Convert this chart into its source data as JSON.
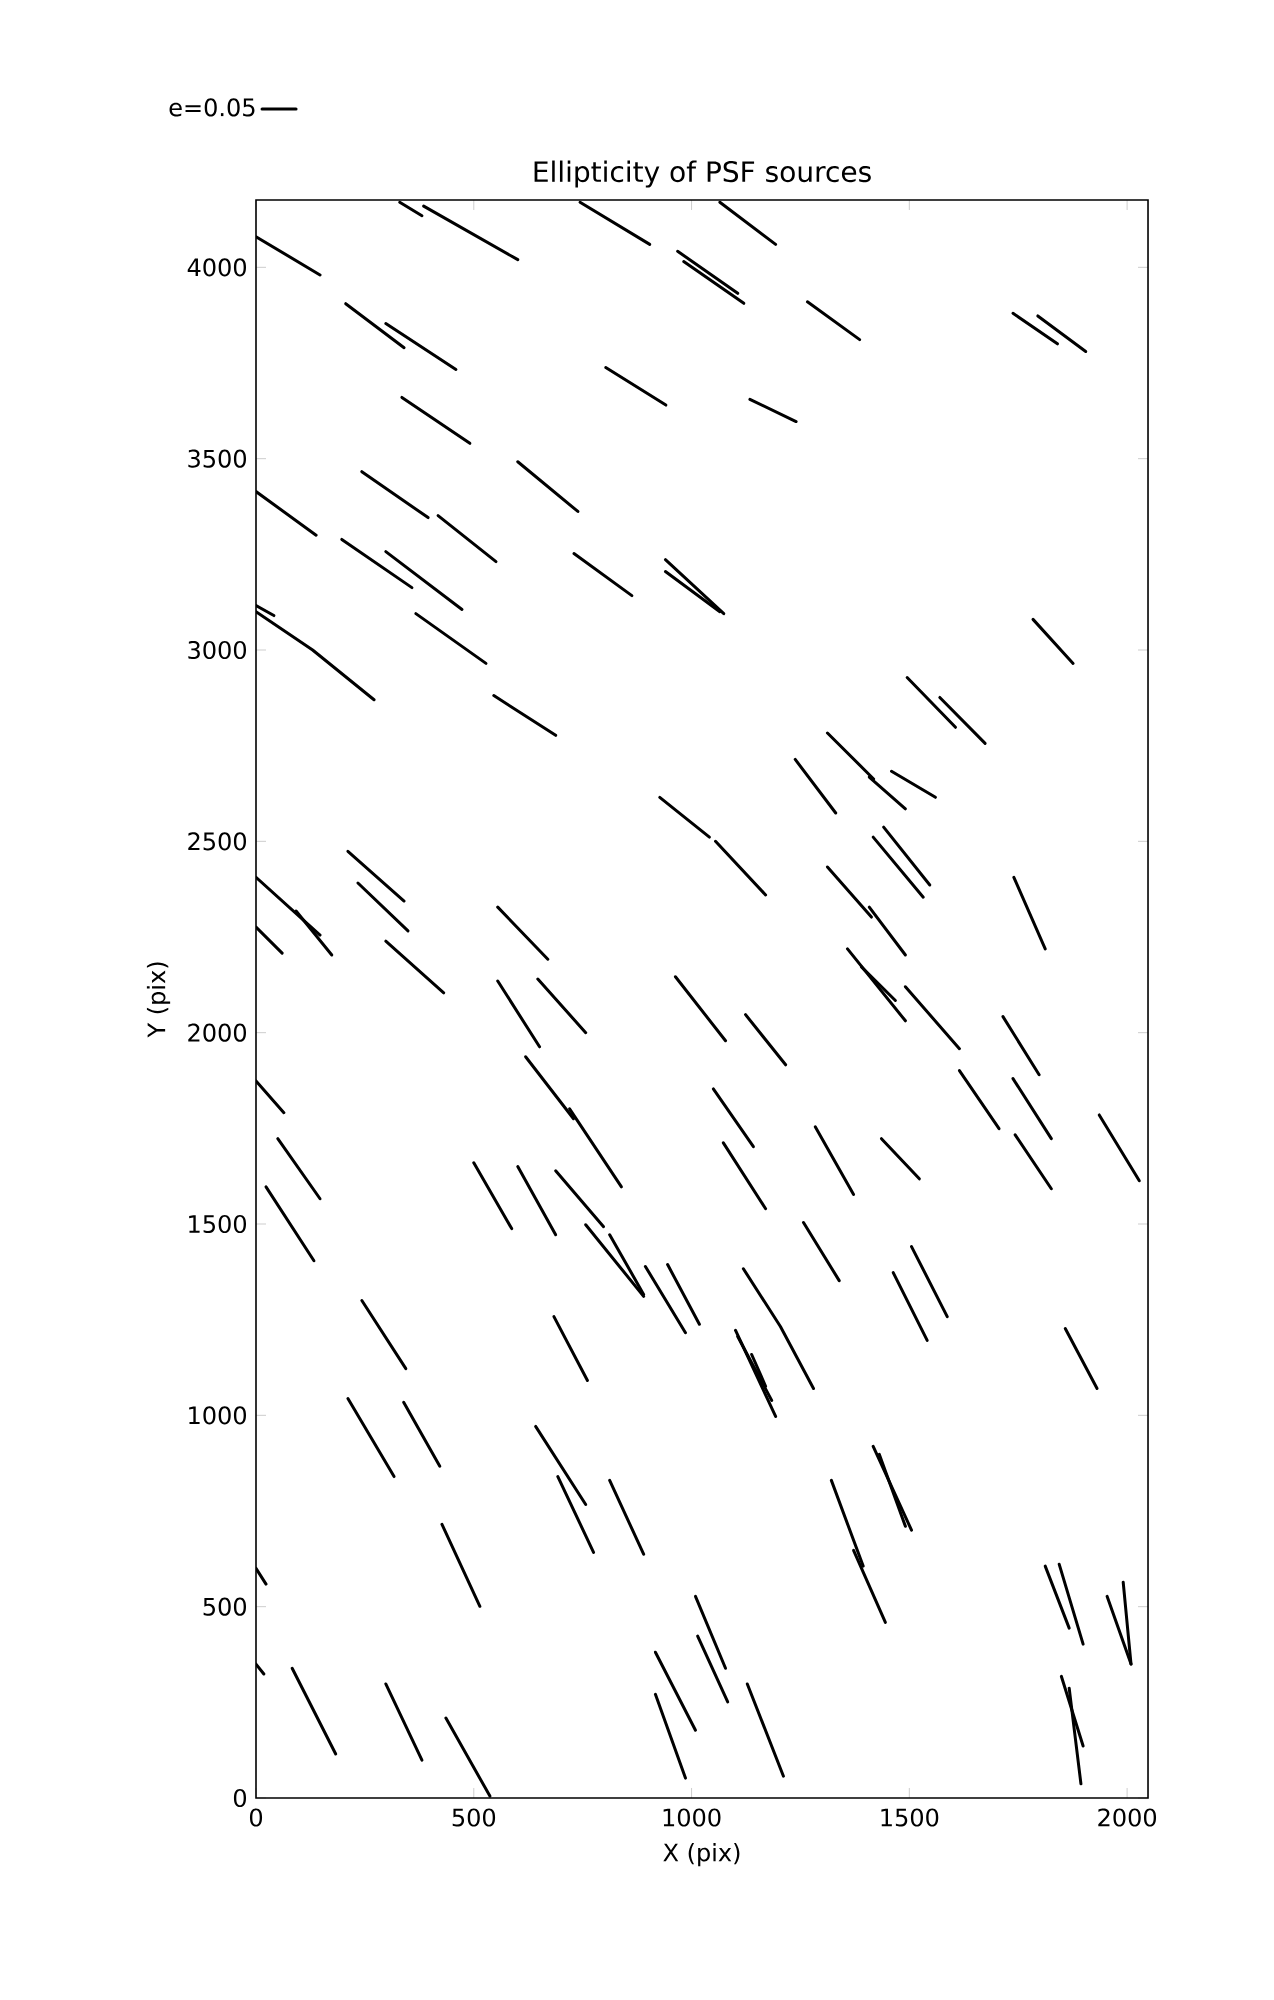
{
  "chart_data": {
    "type": "line",
    "title": "Ellipticity of PSF sources",
    "xlabel": "X (pix)",
    "ylabel": "Y (pix)",
    "xlim": [
      0,
      2048
    ],
    "ylim": [
      0,
      4176
    ],
    "xticks": [
      0,
      500,
      1000,
      1500,
      2000
    ],
    "yticks": [
      0,
      500,
      1000,
      1500,
      2000,
      2500,
      3000,
      3500,
      4000
    ],
    "marker": "none",
    "line_style": "solid",
    "legend": "top left",
    "series": [
      {
        "name": "e=0.05",
        "color": "#000000",
        "x": [
          0,
          147
        ],
        "values": [
          4080,
          3980
        ]
      },
      {
        "color": "#000000",
        "x": [
          330,
          381
        ],
        "values": [
          4170,
          4135
        ]
      },
      {
        "color": "#000000",
        "x": [
          385,
          601
        ],
        "values": [
          4160,
          4020
        ]
      },
      {
        "color": "#000000",
        "x": [
          744,
          904
        ],
        "values": [
          4170,
          4060
        ]
      },
      {
        "color": "#000000",
        "x": [
          968,
          1106
        ],
        "values": [
          4042,
          3932
        ]
      },
      {
        "color": "#000000",
        "x": [
          982,
          1120
        ],
        "values": [
          4015,
          3906
        ]
      },
      {
        "color": "#000000",
        "x": [
          1065,
          1193
        ],
        "values": [
          4170,
          4060
        ]
      },
      {
        "color": "#000000",
        "x": [
          1266,
          1386
        ],
        "values": [
          3910,
          3811
        ]
      },
      {
        "color": "#000000",
        "x": [
          1738,
          1840
        ],
        "values": [
          3880,
          3800
        ]
      },
      {
        "color": "#000000",
        "x": [
          1795,
          1905
        ],
        "values": [
          3873,
          3780
        ]
      },
      {
        "color": "#000000",
        "x": [
          1134,
          1240
        ],
        "values": [
          3655,
          3597
        ]
      },
      {
        "color": "#000000",
        "x": [
          206,
          340
        ],
        "values": [
          3905,
          3790
        ]
      },
      {
        "color": "#000000",
        "x": [
          298,
          459
        ],
        "values": [
          3853,
          3733
        ]
      },
      {
        "color": "#000000",
        "x": [
          803,
          941
        ],
        "values": [
          3738,
          3640
        ]
      },
      {
        "color": "#000000",
        "x": [
          335,
          491
        ],
        "values": [
          3660,
          3540
        ]
      },
      {
        "color": "#000000",
        "x": [
          601,
          739
        ],
        "values": [
          3492,
          3362
        ]
      },
      {
        "color": "#000000",
        "x": [
          0,
          138
        ],
        "values": [
          3414,
          3300
        ]
      },
      {
        "color": "#000000",
        "x": [
          243,
          395
        ],
        "values": [
          3466,
          3346
        ]
      },
      {
        "color": "#000000",
        "x": [
          418,
          551
        ],
        "values": [
          3351,
          3231
        ]
      },
      {
        "color": "#000000",
        "x": [
          197,
          358
        ],
        "values": [
          3289,
          3163
        ]
      },
      {
        "color": "#000000",
        "x": [
          298,
          473
        ],
        "values": [
          3257,
          3106
        ]
      },
      {
        "color": "#000000",
        "x": [
          730,
          863
        ],
        "values": [
          3252,
          3142
        ]
      },
      {
        "color": "#000000",
        "x": [
          940,
          1074
        ],
        "values": [
          3236,
          3095
        ]
      },
      {
        "color": "#000000",
        "x": [
          940,
          1065
        ],
        "values": [
          3205,
          3100
        ]
      },
      {
        "color": "#000000",
        "x": [
          0,
          41
        ],
        "values": [
          3116,
          3090
        ]
      },
      {
        "color": "#000000",
        "x": [
          0,
          130,
          271
        ],
        "values": [
          3100,
          3000,
          2870
        ]
      },
      {
        "color": "#000000",
        "x": [
          367,
          528
        ],
        "values": [
          3095,
          2965
        ]
      },
      {
        "color": "#000000",
        "x": [
          546,
          688
        ],
        "values": [
          2881,
          2777
        ]
      },
      {
        "color": "#000000",
        "x": [
          927,
          1041
        ],
        "values": [
          2615,
          2511
        ]
      },
      {
        "color": "#000000",
        "x": [
          1055,
          1170
        ],
        "values": [
          2500,
          2360
        ]
      },
      {
        "color": "#000000",
        "x": [
          1312,
          1418
        ],
        "values": [
          2783,
          2663
        ]
      },
      {
        "color": "#000000",
        "x": [
          1408,
          1491
        ],
        "values": [
          2668,
          2585
        ]
      },
      {
        "color": "#000000",
        "x": [
          1238,
          1331
        ],
        "values": [
          2714,
          2574
        ]
      },
      {
        "color": "#000000",
        "x": [
          1459,
          1560
        ],
        "values": [
          2683,
          2615
        ]
      },
      {
        "color": "#000000",
        "x": [
          1495,
          1606
        ],
        "values": [
          2928,
          2798
        ]
      },
      {
        "color": "#000000",
        "x": [
          1570,
          1674
        ],
        "values": [
          2876,
          2756
        ]
      },
      {
        "color": "#000000",
        "x": [
          1784,
          1876
        ],
        "values": [
          3080,
          2965
        ]
      },
      {
        "color": "#000000",
        "x": [
          1417,
          1532
        ],
        "values": [
          2511,
          2354
        ]
      },
      {
        "color": "#000000",
        "x": [
          1441,
          1547
        ],
        "values": [
          2537,
          2386
        ]
      },
      {
        "color": "#000000",
        "x": [
          1312,
          1413
        ],
        "values": [
          2433,
          2302
        ]
      },
      {
        "color": "#000000",
        "x": [
          1408,
          1491
        ],
        "values": [
          2328,
          2203
        ]
      },
      {
        "color": "#000000",
        "x": [
          1740,
          1812
        ],
        "values": [
          2406,
          2219
        ]
      },
      {
        "color": "#000000",
        "x": [
          1358,
          1491
        ],
        "values": [
          2219,
          2031
        ]
      },
      {
        "color": "#000000",
        "x": [
          1390,
          1468
        ],
        "values": [
          2172,
          2084
        ]
      },
      {
        "color": "#000000",
        "x": [
          1491,
          1615
        ],
        "values": [
          2120,
          1958
        ]
      },
      {
        "color": "#000000",
        "x": [
          555,
          651
        ],
        "values": [
          2135,
          1963
        ]
      },
      {
        "color": "#000000",
        "x": [
          647,
          757
        ],
        "values": [
          2140,
          2000
        ]
      },
      {
        "color": "#000000",
        "x": [
          963,
          1078
        ],
        "values": [
          2146,
          1979
        ]
      },
      {
        "color": "#000000",
        "x": [
          1124,
          1216
        ],
        "values": [
          2047,
          1916
        ]
      },
      {
        "color": "#000000",
        "x": [
          1715,
          1798
        ],
        "values": [
          2042,
          1890
        ]
      },
      {
        "color": "#000000",
        "x": [
          1615,
          1706
        ],
        "values": [
          1901,
          1749
        ]
      },
      {
        "color": "#000000",
        "x": [
          1738,
          1826
        ],
        "values": [
          1880,
          1723
        ]
      },
      {
        "color": "#000000",
        "x": [
          1936,
          2028
        ],
        "values": [
          1785,
          1613
        ]
      },
      {
        "color": "#000000",
        "x": [
          1743,
          1826
        ],
        "values": [
          1733,
          1592
        ]
      },
      {
        "color": "#000000",
        "x": [
          1050,
          1142
        ],
        "values": [
          1853,
          1702
        ]
      },
      {
        "color": "#000000",
        "x": [
          1073,
          1170
        ],
        "values": [
          1712,
          1540
        ]
      },
      {
        "color": "#000000",
        "x": [
          1284,
          1372
        ],
        "values": [
          1754,
          1577
        ]
      },
      {
        "color": "#000000",
        "x": [
          1436,
          1523
        ],
        "values": [
          1723,
          1618
        ]
      },
      {
        "color": "#000000",
        "x": [
          1257,
          1339
        ],
        "values": [
          1504,
          1352
        ]
      },
      {
        "color": "#000000",
        "x": [
          1463,
          1541
        ],
        "values": [
          1373,
          1196
        ]
      },
      {
        "color": "#000000",
        "x": [
          1505,
          1587
        ],
        "values": [
          1441,
          1258
        ]
      },
      {
        "color": "#000000",
        "x": [
          1858,
          1931
        ],
        "values": [
          1227,
          1070
        ]
      },
      {
        "color": "#000000",
        "x": [
          1119,
          1204,
          1280
        ],
        "values": [
          1383,
          1232,
          1070
        ]
      },
      {
        "color": "#000000",
        "x": [
          1101,
          1193
        ],
        "values": [
          1222,
          997
        ]
      },
      {
        "color": "#000000",
        "x": [
          1106,
          1184
        ],
        "values": [
          1206,
          1039
        ]
      },
      {
        "color": "#000000",
        "x": [
          1138,
          1170
        ],
        "values": [
          1159,
          1076
        ]
      },
      {
        "color": "#000000",
        "x": [
          894,
          986
        ],
        "values": [
          1389,
          1216
        ]
      },
      {
        "color": "#000000",
        "x": [
          945,
          1018
        ],
        "values": [
          1394,
          1238
        ]
      },
      {
        "color": "#000000",
        "x": [
          757,
          890
        ],
        "values": [
          1498,
          1311
        ]
      },
      {
        "color": "#000000",
        "x": [
          812,
          890
        ],
        "values": [
          1472,
          1316
        ]
      },
      {
        "color": "#000000",
        "x": [
          688,
          798
        ],
        "values": [
          1639,
          1493
        ]
      },
      {
        "color": "#000000",
        "x": [
          601,
          688
        ],
        "values": [
          1650,
          1472
        ]
      },
      {
        "color": "#000000",
        "x": [
          500,
          587
        ],
        "values": [
          1660,
          1488
        ]
      },
      {
        "color": "#000000",
        "x": [
          619,
          729
        ],
        "values": [
          1937,
          1775
        ]
      },
      {
        "color": "#000000",
        "x": [
          720,
          839
        ],
        "values": [
          1801,
          1597
        ]
      },
      {
        "color": "#000000",
        "x": [
          0,
          64
        ],
        "values": [
          1874,
          1791
        ]
      },
      {
        "color": "#000000",
        "x": [
          50,
          147
        ],
        "values": [
          1723,
          1566
        ]
      },
      {
        "color": "#000000",
        "x": [
          23,
          133
        ],
        "values": [
          1597,
          1404
        ]
      },
      {
        "color": "#000000",
        "x": [
          243,
          344
        ],
        "values": [
          1300,
          1122
        ]
      },
      {
        "color": "#000000",
        "x": [
          684,
          761
        ],
        "values": [
          1258,
          1091
        ]
      },
      {
        "color": "#000000",
        "x": [
          211,
          317
        ],
        "values": [
          1044,
          840
        ]
      },
      {
        "color": "#000000",
        "x": [
          339,
          422
        ],
        "values": [
          1034,
          867
        ]
      },
      {
        "color": "#000000",
        "x": [
          642,
          757
        ],
        "values": [
          971,
          767
        ]
      },
      {
        "color": "#000000",
        "x": [
          693,
          775
        ],
        "values": [
          840,
          642
        ]
      },
      {
        "color": "#000000",
        "x": [
          812,
          890
        ],
        "values": [
          830,
          637
        ]
      },
      {
        "color": "#000000",
        "x": [
          427,
          514
        ],
        "values": [
          715,
          501
        ]
      },
      {
        "color": "#000000",
        "x": [
          0,
          23
        ],
        "values": [
          600,
          559
        ]
      },
      {
        "color": "#000000",
        "x": [
          0,
          18
        ],
        "values": [
          350,
          324
        ]
      },
      {
        "color": "#000000",
        "x": [
          83,
          183
        ],
        "values": [
          339,
          115
        ]
      },
      {
        "color": "#000000",
        "x": [
          298,
          381
        ],
        "values": [
          298,
          99
        ]
      },
      {
        "color": "#000000",
        "x": [
          436,
          537
        ],
        "values": [
          209,
          5
        ]
      },
      {
        "color": "#000000",
        "x": [
          917,
          1009
        ],
        "values": [
          381,
          177
        ]
      },
      {
        "color": "#000000",
        "x": [
          917,
          986
        ],
        "values": [
          271,
          52
        ]
      },
      {
        "color": "#000000",
        "x": [
          1009,
          1078
        ],
        "values": [
          527,
          339
        ]
      },
      {
        "color": "#000000",
        "x": [
          1014,
          1083
        ],
        "values": [
          423,
          251
        ]
      },
      {
        "color": "#000000",
        "x": [
          1128,
          1211
        ],
        "values": [
          298,
          57
        ]
      },
      {
        "color": "#000000",
        "x": [
          1321,
          1394
        ],
        "values": [
          830,
          606
        ]
      },
      {
        "color": "#000000",
        "x": [
          1372,
          1445
        ],
        "values": [
          647,
          459
        ]
      },
      {
        "color": "#000000",
        "x": [
          1417,
          1505
        ],
        "values": [
          919,
          700
        ]
      },
      {
        "color": "#000000",
        "x": [
          1431,
          1491
        ],
        "values": [
          898,
          710
        ]
      },
      {
        "color": "#000000",
        "x": [
          1812,
          1867
        ],
        "values": [
          606,
          444
        ]
      },
      {
        "color": "#000000",
        "x": [
          1844,
          1899
        ],
        "values": [
          611,
          402
        ]
      },
      {
        "color": "#000000",
        "x": [
          1954,
          2009
        ],
        "values": [
          527,
          350
        ]
      },
      {
        "color": "#000000",
        "x": [
          1991,
          2009
        ],
        "values": [
          564,
          350
        ]
      },
      {
        "color": "#000000",
        "x": [
          1849,
          1899
        ],
        "values": [
          318,
          136
        ]
      },
      {
        "color": "#000000",
        "x": [
          1867,
          1894
        ],
        "values": [
          287,
          37
        ]
      },
      {
        "color": "#000000",
        "x": [
          0,
          147
        ],
        "values": [
          2406,
          2255
        ]
      },
      {
        "color": "#000000",
        "x": [
          92,
          174
        ],
        "values": [
          2318,
          2203
        ]
      },
      {
        "color": "#000000",
        "x": [
          0,
          60
        ],
        "values": [
          2276,
          2208
        ]
      },
      {
        "color": "#000000",
        "x": [
          211,
          340
        ],
        "values": [
          2474,
          2344
        ]
      },
      {
        "color": "#000000",
        "x": [
          234,
          349
        ],
        "values": [
          2391,
          2266
        ]
      },
      {
        "color": "#000000",
        "x": [
          298,
          431
        ],
        "values": [
          2239,
          2104
        ]
      },
      {
        "color": "#000000",
        "x": [
          555,
          670
        ],
        "values": [
          2328,
          2192
        ]
      }
    ]
  }
}
